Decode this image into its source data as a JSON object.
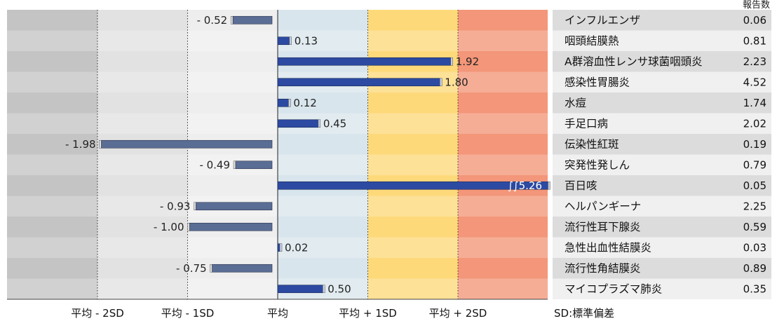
{
  "chart_data": {
    "type": "bar",
    "orientation": "horizontal",
    "categories": [
      "インフルエンザ",
      "咽頭結膜熱",
      "A群溶血性レンサ球菌咽頭炎",
      "感染性胃腸炎",
      "水痘",
      "手足口病",
      "伝染性紅斑",
      "突発性発しん",
      "百日咳",
      "ヘルパンギーナ",
      "流行性耳下腺炎",
      "急性出血性結膜炎",
      "流行性角結膜炎",
      "マイコプラズマ肺炎"
    ],
    "values": [
      -0.52,
      0.13,
      1.92,
      1.8,
      0.12,
      0.45,
      -1.98,
      -0.49,
      5.26,
      -0.93,
      -1.0,
      0.02,
      -0.75,
      0.5
    ],
    "value_labels": [
      "- 0.52",
      "0.13",
      "1.92",
      "1.80",
      "0.12",
      "0.45",
      "- 1.98",
      "- 0.49",
      "5.26",
      "- 0.93",
      "- 1.00",
      "0.02",
      "- 0.75",
      "0.50"
    ],
    "truncated": [
      false,
      false,
      false,
      false,
      false,
      false,
      false,
      false,
      true,
      false,
      false,
      false,
      false,
      false
    ],
    "xlim": [
      -2.5,
      3.0
    ],
    "x_tick_values": [
      -2,
      -1,
      0,
      1,
      2
    ],
    "x_tick_labels": [
      "平均 - 2SD",
      "平均 - 1SD",
      "平均",
      "平均 + 1SD",
      "平均 + 2SD"
    ],
    "xlabel": "",
    "ylabel": "",
    "note": "SD:標準偏差",
    "table": {
      "header": "報告数",
      "values": [
        "0.06",
        "0.81",
        "2.23",
        "4.52",
        "1.74",
        "2.02",
        "0.19",
        "0.79",
        "0.05",
        "2.25",
        "0.59",
        "0.03",
        "0.89",
        "0.35"
      ]
    },
    "zone_colors": {
      "below_minus2": "#c4c4c4",
      "minus2_to_minus1": "#e2e2e2",
      "minus1_to_mean": "#eeeeee",
      "mean_to_plus1": "#d8e5ec",
      "plus1_to_plus2": "#fdd97a",
      "above_plus2": "#f39679"
    },
    "bar_colors": {
      "positive": "#2c4aa1",
      "negative": "#5a6d94"
    },
    "grid": false
  }
}
